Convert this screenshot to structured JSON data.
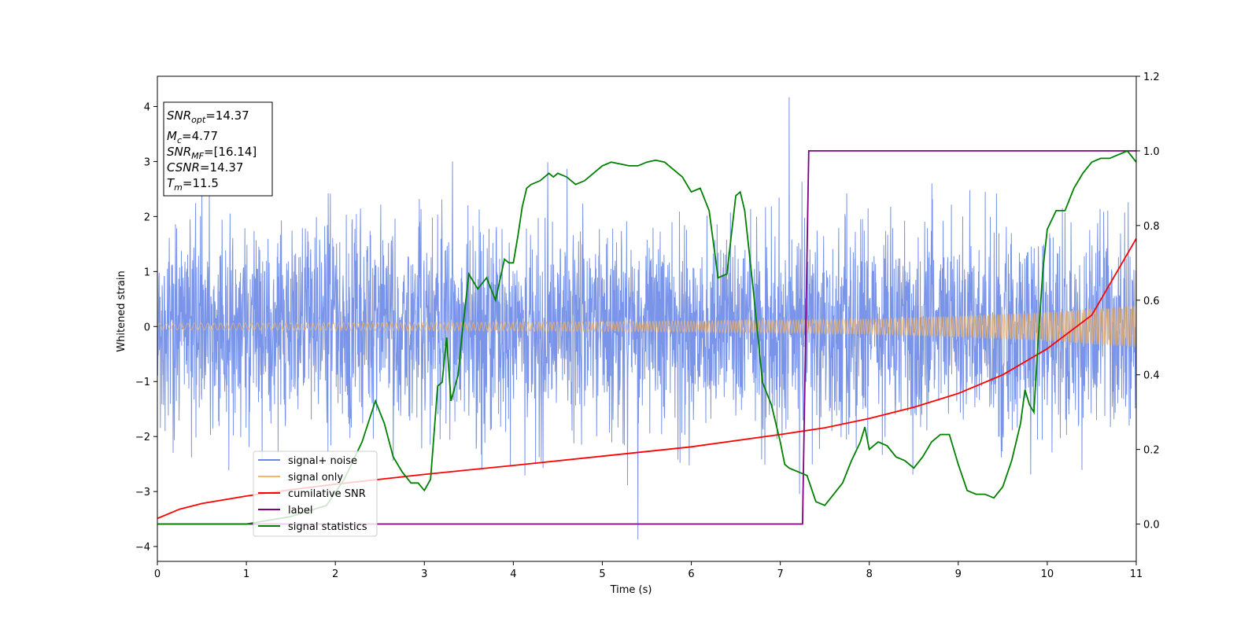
{
  "chart_data": {
    "type": "line",
    "xlabel": "Time (s)",
    "ylabel": "Whitened strain",
    "xlim": [
      0,
      11
    ],
    "ylim_left": [
      -4.27,
      4.55
    ],
    "ylim_right": [
      -0.1,
      1.2
    ],
    "xticks": [
      "0",
      "1",
      "2",
      "3",
      "4",
      "5",
      "6",
      "7",
      "8",
      "9",
      "10",
      "11"
    ],
    "yticks_left": [
      "−4",
      "−3",
      "−2",
      "−1",
      "0",
      "1",
      "2",
      "3",
      "4"
    ],
    "yticks_right": [
      "0.0",
      "0.2",
      "0.4",
      "0.6",
      "0.8",
      "1.0",
      "1.2"
    ],
    "legend_position": "lower-left",
    "info_box": {
      "line1_main": "SNR",
      "line1_sub": "opt",
      "line1_value": "=14.37",
      "line2_main": "M",
      "line2_sub": "c",
      "line2_value": "=4.77",
      "line3_main": "SNR",
      "line3_sub": "MF",
      "line3_value": "=[16.14]",
      "line4_main": "CSNR",
      "line4_value": "=14.37",
      "line5_main": "T",
      "line5_sub": "m",
      "line5_value": "=11.5"
    },
    "series": [
      {
        "name": "signal+ noise",
        "axis": "left",
        "color": "#6a88e6",
        "description_x": [
          0,
          11
        ],
        "typical_amplitude": 1.3,
        "peak_max": 4.17,
        "peak_max_x": 7.1,
        "peak_min": -3.87,
        "peak_min_x": 5.4
      },
      {
        "name": "signal only",
        "axis": "left",
        "color": "#f5b563",
        "envelope_x": [
          0,
          2,
          4,
          6,
          8,
          9,
          10,
          11
        ],
        "envelope_amplitude": [
          0.06,
          0.07,
          0.08,
          0.1,
          0.14,
          0.19,
          0.26,
          0.38
        ]
      },
      {
        "name": "cumilative SNR",
        "axis": "right",
        "color": "#ff0000",
        "x": [
          0,
          0.25,
          0.5,
          1,
          1.5,
          2,
          3,
          4,
          5,
          6,
          7,
          7.5,
          8,
          8.5,
          9,
          9.5,
          10,
          10.5,
          11
        ],
        "y": [
          0.015,
          0.04,
          0.055,
          0.075,
          0.092,
          0.107,
          0.133,
          0.157,
          0.182,
          0.207,
          0.24,
          0.258,
          0.283,
          0.313,
          0.35,
          0.4,
          0.47,
          0.56,
          0.765
        ]
      },
      {
        "name": "label",
        "axis": "right",
        "color": "#800080",
        "x": [
          0,
          7.25,
          7.32,
          11
        ],
        "y": [
          0,
          0,
          1,
          1
        ]
      },
      {
        "name": "signal statistics",
        "axis": "right",
        "color": "#008000",
        "x": [
          0,
          0.3,
          1,
          1.5,
          1.9,
          2.1,
          2.3,
          2.45,
          2.55,
          2.65,
          2.75,
          2.85,
          2.93,
          3.0,
          3.07,
          3.15,
          3.2,
          3.25,
          3.3,
          3.38,
          3.42,
          3.5,
          3.6,
          3.7,
          3.8,
          3.9,
          3.95,
          4.0,
          4.05,
          4.1,
          4.15,
          4.2,
          4.3,
          4.4,
          4.45,
          4.5,
          4.6,
          4.7,
          4.8,
          4.9,
          5.0,
          5.1,
          5.2,
          5.3,
          5.4,
          5.5,
          5.6,
          5.7,
          5.8,
          5.9,
          6.0,
          6.1,
          6.2,
          6.3,
          6.4,
          6.5,
          6.55,
          6.6,
          6.7,
          6.8,
          6.9,
          7.0,
          7.05,
          7.1,
          7.2,
          7.3,
          7.4,
          7.5,
          7.6,
          7.7,
          7.8,
          7.9,
          7.95,
          8.0,
          8.1,
          8.2,
          8.3,
          8.4,
          8.5,
          8.6,
          8.7,
          8.8,
          8.9,
          9.0,
          9.1,
          9.2,
          9.3,
          9.4,
          9.5,
          9.6,
          9.7,
          9.75,
          9.8,
          9.85,
          9.9,
          9.95,
          10.0,
          10.1,
          10.2,
          10.3,
          10.4,
          10.5,
          10.6,
          10.7,
          10.8,
          10.9,
          11.0
        ],
        "y": [
          0.0,
          0.0,
          0.0,
          0.02,
          0.05,
          0.12,
          0.22,
          0.33,
          0.27,
          0.18,
          0.14,
          0.11,
          0.11,
          0.09,
          0.12,
          0.37,
          0.38,
          0.5,
          0.33,
          0.4,
          0.5,
          0.67,
          0.63,
          0.66,
          0.6,
          0.71,
          0.7,
          0.7,
          0.77,
          0.85,
          0.9,
          0.91,
          0.92,
          0.94,
          0.93,
          0.94,
          0.93,
          0.91,
          0.92,
          0.94,
          0.96,
          0.97,
          0.965,
          0.96,
          0.96,
          0.97,
          0.975,
          0.97,
          0.95,
          0.93,
          0.89,
          0.9,
          0.84,
          0.66,
          0.67,
          0.88,
          0.89,
          0.84,
          0.62,
          0.38,
          0.32,
          0.22,
          0.16,
          0.15,
          0.14,
          0.13,
          0.06,
          0.05,
          0.08,
          0.11,
          0.17,
          0.22,
          0.26,
          0.2,
          0.22,
          0.21,
          0.18,
          0.17,
          0.15,
          0.18,
          0.22,
          0.24,
          0.24,
          0.16,
          0.09,
          0.08,
          0.08,
          0.07,
          0.1,
          0.17,
          0.27,
          0.36,
          0.32,
          0.3,
          0.5,
          0.68,
          0.79,
          0.84,
          0.84,
          0.9,
          0.94,
          0.97,
          0.98,
          0.98,
          0.99,
          1.0,
          0.97
        ]
      }
    ]
  }
}
